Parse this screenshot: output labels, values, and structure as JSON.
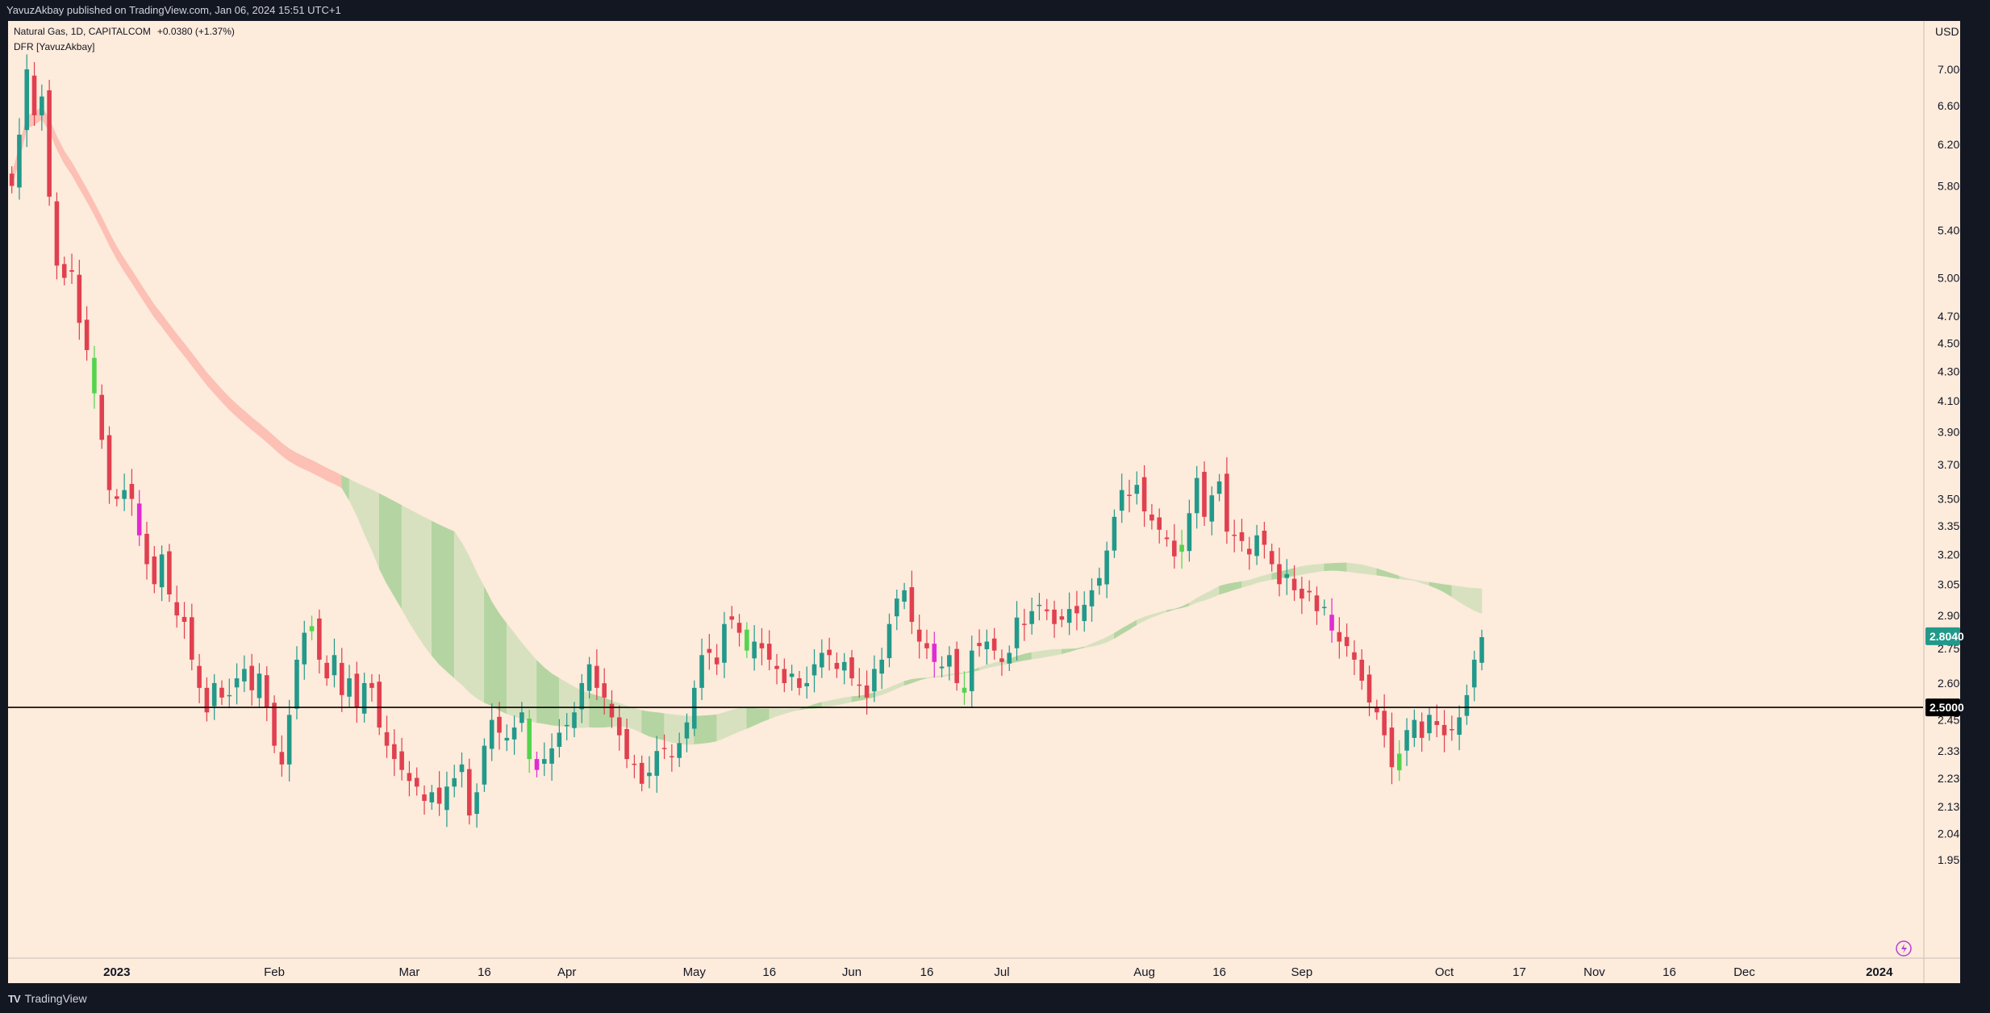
{
  "header": {
    "published": "YavuzAkbay published on TradingView.com, Jan 06, 2024 15:51 UTC+1"
  },
  "legend": {
    "symbol_line": "Natural Gas, 1D, CAPITALCOM",
    "change": "+0.0380 (+1.37%)",
    "indicator": "DFR [YavuzAkbay]"
  },
  "currency": "USD",
  "footer": {
    "brand": "TradingView",
    "logo_mark": "TV"
  },
  "colors": {
    "background": "#fdebdc",
    "bull": "#22998a",
    "bear": "#e0404f",
    "lime": "#53d44c",
    "magenta": "#e02bd3",
    "band_green_light": "#d8e1bf",
    "band_green_dark": "#b4d5a1",
    "band_red": "#fcc0b5",
    "hline": "#000000"
  },
  "chart_data": {
    "type": "candlestick",
    "scale": "log",
    "y_ticks": [
      7.0,
      6.6,
      6.2,
      5.8,
      5.4,
      5.0,
      4.7,
      4.5,
      4.3,
      4.1,
      3.9,
      3.7,
      3.5,
      3.35,
      3.2,
      3.05,
      2.9,
      2.75,
      2.6,
      2.45,
      2.33,
      2.23,
      2.13,
      2.04,
      1.955
    ],
    "y_tick_labels": [
      "7.0000",
      "6.6000",
      "6.2000",
      "5.8000",
      "5.4000",
      "5.0000",
      "4.7000",
      "4.5000",
      "4.3000",
      "4.1000",
      "3.9000",
      "3.7000",
      "3.5000",
      "3.3500",
      "3.2000",
      "3.0500",
      "2.9000",
      "2.7500",
      "2.6000",
      "2.4500",
      "2.3300",
      "2.2300",
      "2.1300",
      "2.0400",
      "1.9550"
    ],
    "x_ticks": [
      {
        "label": "2023",
        "bar": 14,
        "bold": true
      },
      {
        "label": "Feb",
        "bar": 35
      },
      {
        "label": "Mar",
        "bar": 53
      },
      {
        "label": "16",
        "bar": 63
      },
      {
        "label": "Apr",
        "bar": 74
      },
      {
        "label": "May",
        "bar": 91
      },
      {
        "label": "16",
        "bar": 101
      },
      {
        "label": "Jun",
        "bar": 112
      },
      {
        "label": "16",
        "bar": 122
      },
      {
        "label": "Jul",
        "bar": 132
      },
      {
        "label": "Aug",
        "bar": 151
      },
      {
        "label": "16",
        "bar": 161
      },
      {
        "label": "Sep",
        "bar": 172
      },
      {
        "label": "Oct",
        "bar": 191
      },
      {
        "label": "17",
        "bar": 201
      },
      {
        "label": "Nov",
        "bar": 211
      },
      {
        "label": "16",
        "bar": 221
      },
      {
        "label": "Dec",
        "bar": 231
      },
      {
        "label": "2024",
        "bar": 249,
        "bold": true
      }
    ],
    "last_price": 2.804,
    "last_price_label": "2.8040",
    "hline_price": 2.5,
    "hline_label": "2.5000",
    "bars": 252,
    "closes": [
      5.8,
      6.3,
      7.0,
      6.5,
      6.7,
      5.7,
      5.1,
      5.0,
      5.05,
      4.65,
      4.45,
      4.15,
      3.85,
      3.55,
      3.5,
      3.55,
      3.5,
      3.3,
      3.15,
      3.05,
      3.2,
      3.0,
      2.9,
      2.87,
      2.7,
      2.58,
      2.48,
      2.6,
      2.54,
      2.55,
      2.62,
      2.66,
      2.57,
      2.64,
      2.5,
      2.35,
      2.28,
      2.47,
      2.7,
      2.82,
      2.85,
      2.7,
      2.62,
      2.72,
      2.55,
      2.62,
      2.5,
      2.6,
      2.58,
      2.42,
      2.35,
      2.3,
      2.26,
      2.22,
      2.2,
      2.15,
      2.18,
      2.14,
      2.2,
      2.23,
      2.28,
      2.1,
      2.18,
      2.35,
      2.45,
      2.4,
      2.38,
      2.42,
      2.48,
      2.3,
      2.26,
      2.3,
      2.34,
      2.4,
      2.43,
      2.48,
      2.6,
      2.68,
      2.58,
      2.54,
      2.46,
      2.39,
      2.3,
      2.28,
      2.21,
      2.25,
      2.33,
      2.34,
      2.31,
      2.36,
      2.44,
      2.58,
      2.72,
      2.73,
      2.68,
      2.86,
      2.88,
      2.82,
      2.74,
      2.78,
      2.75,
      2.7,
      2.66,
      2.6,
      2.64,
      2.58,
      2.6,
      2.68,
      2.73,
      2.72,
      2.66,
      2.69,
      2.62,
      2.59,
      2.54,
      2.66,
      2.7,
      2.86,
      2.98,
      3.02,
      2.87,
      2.78,
      2.75,
      2.69,
      2.67,
      2.72,
      2.6,
      2.56,
      2.74,
      2.76,
      2.78,
      2.74,
      2.69,
      2.73,
      2.89,
      2.86,
      2.92,
      2.95,
      2.92,
      2.86,
      2.88,
      2.93,
      2.91,
      2.95,
      3.02,
      3.08,
      3.22,
      3.4,
      3.55,
      3.52,
      3.58,
      3.43,
      3.38,
      3.33,
      3.28,
      3.19,
      3.25,
      3.42,
      3.62,
      3.4,
      3.52,
      3.6,
      3.32,
      3.3,
      3.27,
      3.2,
      3.3,
      3.25,
      3.15,
      3.05,
      3.1,
      3.02,
      2.98,
      3.01,
      2.92,
      2.94,
      2.83,
      2.78,
      2.76,
      2.7,
      2.61,
      2.52,
      2.48,
      2.39,
      2.27,
      2.32,
      2.41,
      2.45,
      2.38,
      2.47,
      2.43,
      2.39,
      2.41,
      2.46,
      2.55,
      2.7,
      2.8
    ]
  }
}
